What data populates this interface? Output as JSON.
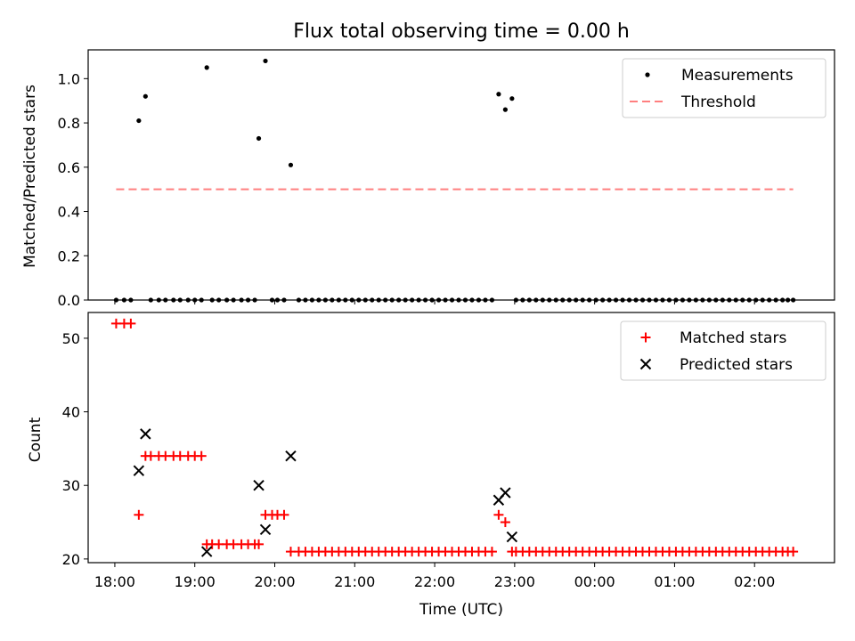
{
  "chart_data": [
    {
      "type": "scatter",
      "title": "Flux total observing time = 0.00 h",
      "ylabel": "Matched/Predicted stars",
      "xlabel": "",
      "ylim": [
        0,
        1.13
      ],
      "yticks": [
        0.0,
        0.2,
        0.4,
        0.6,
        0.8,
        1.0
      ],
      "ytick_labels": [
        "0.0",
        "0.2",
        "0.4",
        "0.6",
        "0.8",
        "1.0"
      ],
      "legend_position": "top-right",
      "colors": {
        "measurements": "#000000",
        "threshold": "#ff7f7f"
      },
      "series": [
        {
          "name": "Measurements",
          "marker": "dot",
          "points": [
            [
              "18:01",
              0.0
            ],
            [
              "18:07",
              0.0
            ],
            [
              "18:12",
              0.0
            ],
            [
              "18:18",
              0.81
            ],
            [
              "18:23",
              0.92
            ],
            [
              "18:27",
              0.0
            ],
            [
              "18:33",
              0.0
            ],
            [
              "18:38",
              0.0
            ],
            [
              "18:44",
              0.0
            ],
            [
              "18:49",
              0.0
            ],
            [
              "18:55",
              0.0
            ],
            [
              "19:00",
              0.0
            ],
            [
              "19:05",
              0.0
            ],
            [
              "19:09",
              1.05
            ],
            [
              "19:13",
              0.0
            ],
            [
              "19:18",
              0.0
            ],
            [
              "19:24",
              0.0
            ],
            [
              "19:29",
              0.0
            ],
            [
              "19:35",
              0.0
            ],
            [
              "19:40",
              0.0
            ],
            [
              "19:45",
              0.0
            ],
            [
              "19:48",
              0.73
            ],
            [
              "19:53",
              1.08
            ],
            [
              "19:58",
              0.0
            ],
            [
              "20:02",
              0.0
            ],
            [
              "20:07",
              0.0
            ],
            [
              "20:12",
              0.61
            ],
            [
              "20:18",
              0.0
            ],
            [
              "20:23",
              0.0
            ],
            [
              "20:28",
              0.0
            ],
            [
              "20:33",
              0.0
            ],
            [
              "20:38",
              0.0
            ],
            [
              "20:43",
              0.0
            ],
            [
              "20:48",
              0.0
            ],
            [
              "20:53",
              0.0
            ],
            [
              "20:58",
              0.0
            ],
            [
              "21:03",
              0.0
            ],
            [
              "21:08",
              0.0
            ],
            [
              "21:13",
              0.0
            ],
            [
              "21:18",
              0.0
            ],
            [
              "21:23",
              0.0
            ],
            [
              "21:28",
              0.0
            ],
            [
              "21:33",
              0.0
            ],
            [
              "21:38",
              0.0
            ],
            [
              "21:43",
              0.0
            ],
            [
              "21:48",
              0.0
            ],
            [
              "21:53",
              0.0
            ],
            [
              "21:58",
              0.0
            ],
            [
              "22:03",
              0.0
            ],
            [
              "22:08",
              0.0
            ],
            [
              "22:13",
              0.0
            ],
            [
              "22:18",
              0.0
            ],
            [
              "22:23",
              0.0
            ],
            [
              "22:28",
              0.0
            ],
            [
              "22:33",
              0.0
            ],
            [
              "22:38",
              0.0
            ],
            [
              "22:43",
              0.0
            ],
            [
              "22:48",
              0.93
            ],
            [
              "22:53",
              0.86
            ],
            [
              "22:58",
              0.91
            ],
            [
              "23:01",
              0.0
            ],
            [
              "23:06",
              0.0
            ],
            [
              "23:11",
              0.0
            ],
            [
              "23:16",
              0.0
            ],
            [
              "23:21",
              0.0
            ],
            [
              "23:26",
              0.0
            ],
            [
              "23:31",
              0.0
            ],
            [
              "23:36",
              0.0
            ],
            [
              "23:41",
              0.0
            ],
            [
              "23:46",
              0.0
            ],
            [
              "23:51",
              0.0
            ],
            [
              "23:56",
              0.0
            ],
            [
              "00:01",
              0.0
            ],
            [
              "00:06",
              0.0
            ],
            [
              "00:11",
              0.0
            ],
            [
              "00:16",
              0.0
            ],
            [
              "00:21",
              0.0
            ],
            [
              "00:26",
              0.0
            ],
            [
              "00:31",
              0.0
            ],
            [
              "00:36",
              0.0
            ],
            [
              "00:41",
              0.0
            ],
            [
              "00:46",
              0.0
            ],
            [
              "00:51",
              0.0
            ],
            [
              "00:56",
              0.0
            ],
            [
              "01:01",
              0.0
            ],
            [
              "01:06",
              0.0
            ],
            [
              "01:11",
              0.0
            ],
            [
              "01:16",
              0.0
            ],
            [
              "01:21",
              0.0
            ],
            [
              "01:26",
              0.0
            ],
            [
              "01:31",
              0.0
            ],
            [
              "01:36",
              0.0
            ],
            [
              "01:41",
              0.0
            ],
            [
              "01:46",
              0.0
            ],
            [
              "01:51",
              0.0
            ],
            [
              "01:56",
              0.0
            ],
            [
              "02:01",
              0.0
            ],
            [
              "02:06",
              0.0
            ],
            [
              "02:11",
              0.0
            ],
            [
              "02:16",
              0.0
            ],
            [
              "02:21",
              0.0
            ],
            [
              "02:25",
              0.0
            ],
            [
              "02:29",
              0.0
            ]
          ]
        },
        {
          "name": "Threshold",
          "marker": "dashed-line",
          "points": [
            [
              "18:01",
              0.5
            ],
            [
              "02:29",
              0.5
            ]
          ]
        }
      ]
    },
    {
      "type": "scatter",
      "title": "",
      "ylabel": "Count",
      "xlabel": "Time (UTC)",
      "ylim": [
        19.5,
        53.5
      ],
      "yticks": [
        20,
        30,
        40,
        50
      ],
      "ytick_labels": [
        "20",
        "30",
        "40",
        "50"
      ],
      "x_tick_labels": [
        "18:00",
        "19:00",
        "20:00",
        "21:00",
        "22:00",
        "23:00",
        "00:00",
        "01:00",
        "02:00"
      ],
      "legend_position": "top-right",
      "colors": {
        "matched": "#ff0000",
        "predicted": "#000000"
      },
      "series": [
        {
          "name": "Matched stars",
          "marker": "plus",
          "points": [
            [
              "18:01",
              52
            ],
            [
              "18:07",
              52
            ],
            [
              "18:12",
              52
            ],
            [
              "18:18",
              26
            ],
            [
              "18:23",
              34
            ],
            [
              "18:27",
              34
            ],
            [
              "18:33",
              34
            ],
            [
              "18:38",
              34
            ],
            [
              "18:44",
              34
            ],
            [
              "18:49",
              34
            ],
            [
              "18:55",
              34
            ],
            [
              "19:00",
              34
            ],
            [
              "19:05",
              34
            ],
            [
              "19:09",
              22
            ],
            [
              "19:13",
              22
            ],
            [
              "19:18",
              22
            ],
            [
              "19:24",
              22
            ],
            [
              "19:29",
              22
            ],
            [
              "19:35",
              22
            ],
            [
              "19:40",
              22
            ],
            [
              "19:45",
              22
            ],
            [
              "19:48",
              22
            ],
            [
              "19:53",
              26
            ],
            [
              "19:58",
              26
            ],
            [
              "20:02",
              26
            ],
            [
              "20:07",
              26
            ],
            [
              "20:12",
              21
            ],
            [
              "20:18",
              21
            ],
            [
              "20:23",
              21
            ],
            [
              "20:28",
              21
            ],
            [
              "20:33",
              21
            ],
            [
              "20:38",
              21
            ],
            [
              "20:43",
              21
            ],
            [
              "20:48",
              21
            ],
            [
              "20:53",
              21
            ],
            [
              "20:58",
              21
            ],
            [
              "21:03",
              21
            ],
            [
              "21:08",
              21
            ],
            [
              "21:13",
              21
            ],
            [
              "21:18",
              21
            ],
            [
              "21:23",
              21
            ],
            [
              "21:28",
              21
            ],
            [
              "21:33",
              21
            ],
            [
              "21:38",
              21
            ],
            [
              "21:43",
              21
            ],
            [
              "21:48",
              21
            ],
            [
              "21:53",
              21
            ],
            [
              "21:58",
              21
            ],
            [
              "22:03",
              21
            ],
            [
              "22:08",
              21
            ],
            [
              "22:13",
              21
            ],
            [
              "22:18",
              21
            ],
            [
              "22:23",
              21
            ],
            [
              "22:28",
              21
            ],
            [
              "22:33",
              21
            ],
            [
              "22:38",
              21
            ],
            [
              "22:43",
              21
            ],
            [
              "22:48",
              26
            ],
            [
              "22:53",
              25
            ],
            [
              "22:58",
              21
            ],
            [
              "23:01",
              21
            ],
            [
              "23:06",
              21
            ],
            [
              "23:11",
              21
            ],
            [
              "23:16",
              21
            ],
            [
              "23:21",
              21
            ],
            [
              "23:26",
              21
            ],
            [
              "23:31",
              21
            ],
            [
              "23:36",
              21
            ],
            [
              "23:41",
              21
            ],
            [
              "23:46",
              21
            ],
            [
              "23:51",
              21
            ],
            [
              "23:56",
              21
            ],
            [
              "00:01",
              21
            ],
            [
              "00:06",
              21
            ],
            [
              "00:11",
              21
            ],
            [
              "00:16",
              21
            ],
            [
              "00:21",
              21
            ],
            [
              "00:26",
              21
            ],
            [
              "00:31",
              21
            ],
            [
              "00:36",
              21
            ],
            [
              "00:41",
              21
            ],
            [
              "00:46",
              21
            ],
            [
              "00:51",
              21
            ],
            [
              "00:56",
              21
            ],
            [
              "01:01",
              21
            ],
            [
              "01:06",
              21
            ],
            [
              "01:11",
              21
            ],
            [
              "01:16",
              21
            ],
            [
              "01:21",
              21
            ],
            [
              "01:26",
              21
            ],
            [
              "01:31",
              21
            ],
            [
              "01:36",
              21
            ],
            [
              "01:41",
              21
            ],
            [
              "01:46",
              21
            ],
            [
              "01:51",
              21
            ],
            [
              "01:56",
              21
            ],
            [
              "02:01",
              21
            ],
            [
              "02:06",
              21
            ],
            [
              "02:11",
              21
            ],
            [
              "02:16",
              21
            ],
            [
              "02:21",
              21
            ],
            [
              "02:25",
              21
            ],
            [
              "02:29",
              21
            ]
          ]
        },
        {
          "name": "Predicted stars",
          "marker": "x",
          "points": [
            [
              "18:18",
              32
            ],
            [
              "18:23",
              37
            ],
            [
              "19:09",
              21
            ],
            [
              "19:48",
              30
            ],
            [
              "19:53",
              24
            ],
            [
              "20:12",
              34
            ],
            [
              "22:48",
              28
            ],
            [
              "22:53",
              29
            ],
            [
              "22:58",
              23
            ]
          ]
        }
      ]
    }
  ]
}
